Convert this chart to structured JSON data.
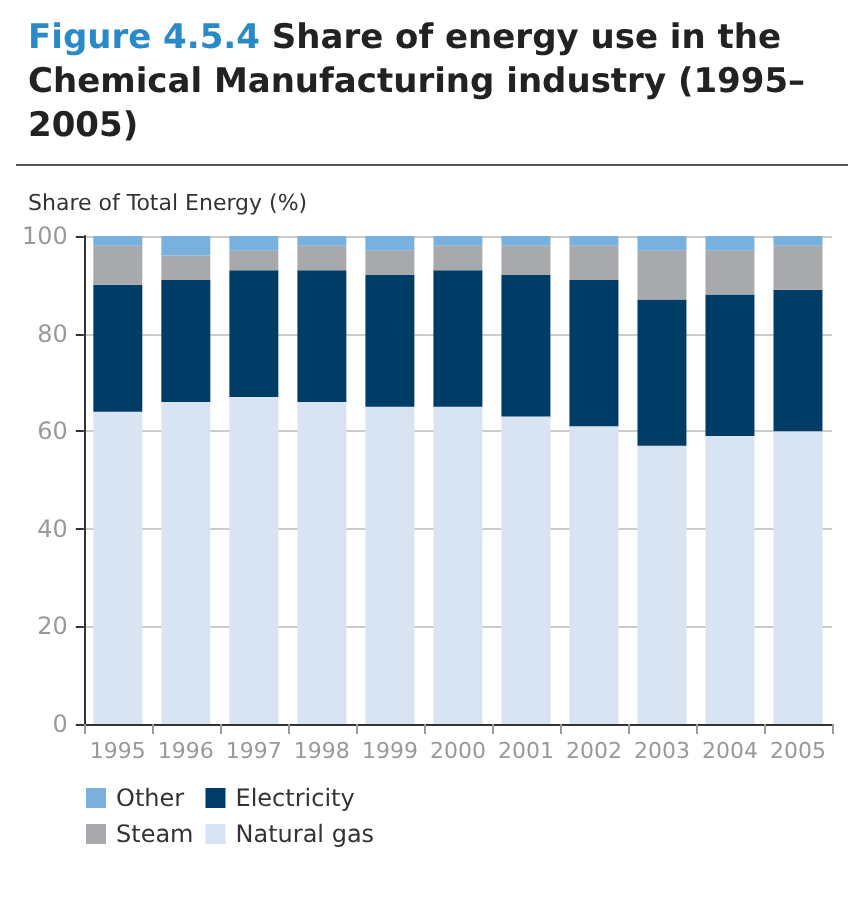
{
  "chart_data": {
    "type": "bar",
    "stacked": true,
    "title": "Figure 4.5.4 Share of energy use in the Chemical Manufacturing industry (1995–2005)",
    "ylabel": "Share of Total Energy (%)",
    "categories": [
      "1995",
      "1996",
      "1997",
      "1998",
      "1999",
      "2000",
      "2001",
      "2002",
      "2003",
      "2004",
      "2005"
    ],
    "series": [
      {
        "name": "Natural gas",
        "color": "#d9e4f2",
        "values": [
          64,
          66,
          67,
          66,
          65,
          65,
          63,
          61,
          57,
          59,
          60
        ]
      },
      {
        "name": "Electricity",
        "color": "#003d66",
        "values": [
          26,
          25,
          26,
          27,
          27,
          28,
          29,
          30,
          30,
          29,
          29
        ]
      },
      {
        "name": "Steam",
        "color": "#a7a9ac",
        "values": [
          8,
          5,
          4,
          5,
          5,
          5,
          6,
          7,
          10,
          9,
          9
        ]
      },
      {
        "name": "Other",
        "color": "#78b1de",
        "values": [
          2,
          4,
          3,
          2,
          3,
          2,
          2,
          2,
          3,
          3,
          2
        ]
      }
    ],
    "ylim": [
      0,
      100
    ],
    "yticks": [
      0,
      20,
      40,
      60,
      80,
      100
    ],
    "grid": "y",
    "legend": "bottom"
  }
}
